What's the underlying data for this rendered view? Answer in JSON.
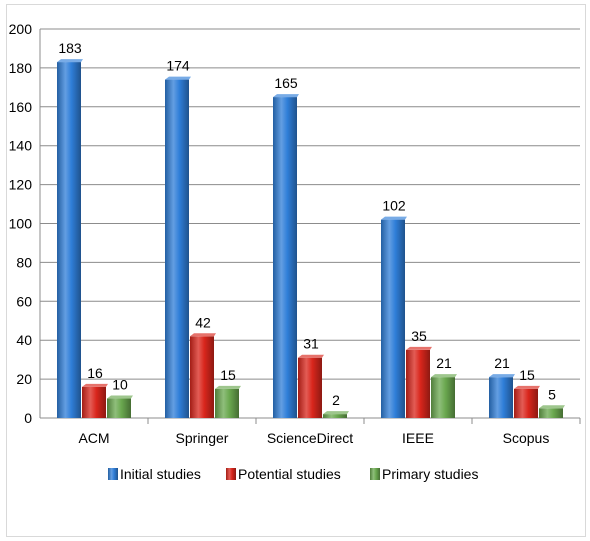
{
  "chart_data": {
    "type": "bar",
    "categories": [
      "ACM",
      "Springer",
      "ScienceDirect",
      "IEEE",
      "Scopus"
    ],
    "series": [
      {
        "name": "Initial studies",
        "values": [
          183,
          174,
          165,
          102,
          21
        ],
        "color": "#2f7ed8"
      },
      {
        "name": "Potential studies",
        "values": [
          16,
          42,
          31,
          35,
          15
        ],
        "color": "#d9261c"
      },
      {
        "name": "Primary studies",
        "values": [
          10,
          15,
          2,
          21,
          5
        ],
        "color": "#6aa84f"
      }
    ],
    "ylim": [
      0,
      200
    ],
    "yticks": [
      "0",
      "20",
      "40",
      "60",
      "80",
      "100",
      "120",
      "140",
      "160",
      "180",
      "200"
    ],
    "grid": true,
    "legend_position": "bottom",
    "bar_style": "3d-cylinder"
  }
}
